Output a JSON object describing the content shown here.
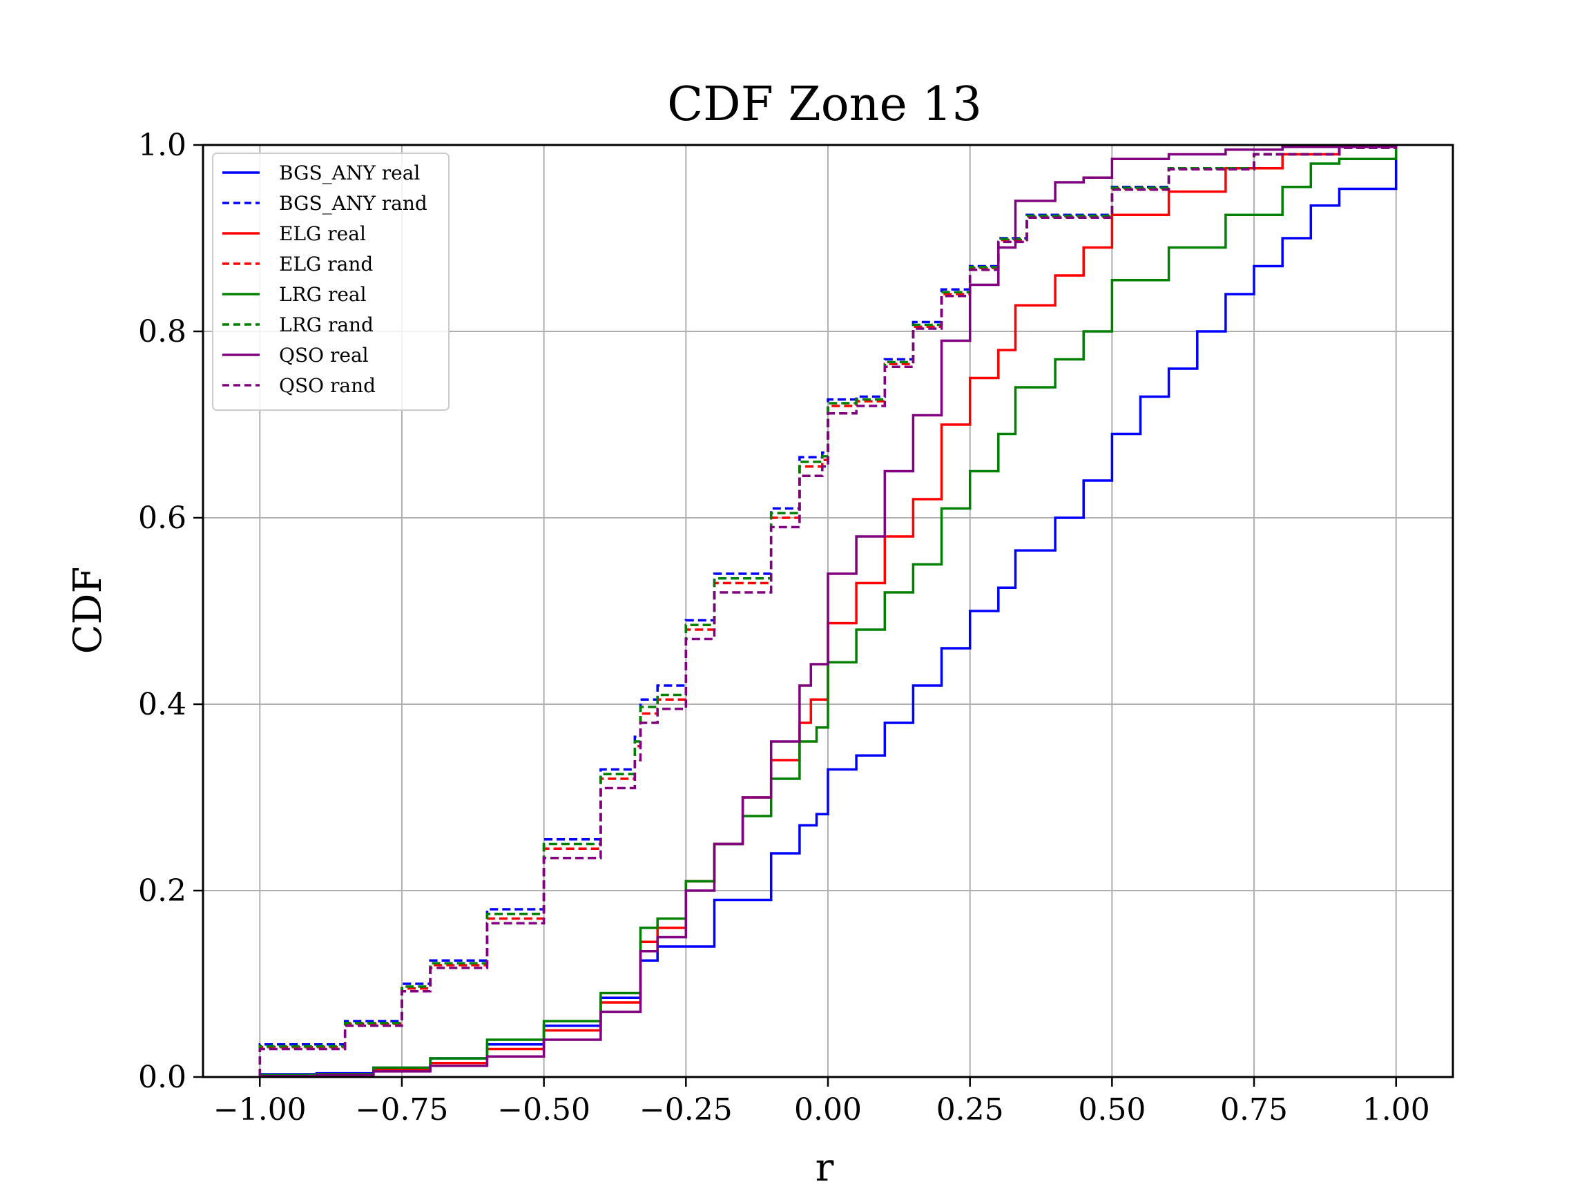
{
  "chart_data": {
    "type": "line",
    "title": "CDF Zone 13",
    "xlabel": "r",
    "ylabel": "CDF",
    "xlim": [
      -1.1,
      1.1
    ],
    "ylim": [
      0.0,
      1.0
    ],
    "grid": true,
    "legend_position": "upper-left",
    "x_ticks": [
      -1.0,
      -0.75,
      -0.5,
      -0.25,
      0.0,
      0.25,
      0.5,
      0.75,
      1.0
    ],
    "x_tick_labels": [
      "−1.00",
      "−0.75",
      "−0.50",
      "−0.25",
      "0.00",
      "0.25",
      "0.50",
      "0.75",
      "1.00"
    ],
    "y_ticks": [
      0.0,
      0.2,
      0.4,
      0.6,
      0.8,
      1.0
    ],
    "y_tick_labels": [
      "0.0",
      "0.2",
      "0.4",
      "0.6",
      "0.8",
      "1.0"
    ],
    "series": [
      {
        "name": "BGS_ANY real",
        "color": "#0000ff",
        "dashed": false,
        "points": [
          [
            -1.0,
            0.0
          ],
          [
            -1.0,
            0.003
          ],
          [
            -0.9,
            0.004
          ],
          [
            -0.8,
            0.01
          ],
          [
            -0.7,
            0.02
          ],
          [
            -0.6,
            0.035
          ],
          [
            -0.5,
            0.055
          ],
          [
            -0.4,
            0.085
          ],
          [
            -0.33,
            0.125
          ],
          [
            -0.3,
            0.14
          ],
          [
            -0.2,
            0.19
          ],
          [
            -0.1,
            0.24
          ],
          [
            -0.05,
            0.27
          ],
          [
            -0.02,
            0.282
          ],
          [
            0.0,
            0.282
          ],
          [
            0.0,
            0.33
          ],
          [
            0.05,
            0.345
          ],
          [
            0.1,
            0.38
          ],
          [
            0.15,
            0.42
          ],
          [
            0.2,
            0.46
          ],
          [
            0.25,
            0.5
          ],
          [
            0.3,
            0.525
          ],
          [
            0.33,
            0.525
          ],
          [
            0.33,
            0.565
          ],
          [
            0.4,
            0.6
          ],
          [
            0.45,
            0.64
          ],
          [
            0.5,
            0.67
          ],
          [
            0.5,
            0.69
          ],
          [
            0.55,
            0.73
          ],
          [
            0.6,
            0.76
          ],
          [
            0.65,
            0.8
          ],
          [
            0.7,
            0.84
          ],
          [
            0.75,
            0.87
          ],
          [
            0.8,
            0.9
          ],
          [
            0.85,
            0.935
          ],
          [
            0.9,
            0.953
          ],
          [
            1.0,
            0.953
          ],
          [
            1.0,
            1.0
          ]
        ]
      },
      {
        "name": "BGS_ANY rand",
        "color": "#0000ff",
        "dashed": true,
        "points": [
          [
            -1.0,
            0.0
          ],
          [
            -1.0,
            0.035
          ],
          [
            -0.92,
            0.035
          ],
          [
            -0.85,
            0.06
          ],
          [
            -0.75,
            0.1
          ],
          [
            -0.7,
            0.125
          ],
          [
            -0.6,
            0.18
          ],
          [
            -0.5,
            0.255
          ],
          [
            -0.4,
            0.33
          ],
          [
            -0.34,
            0.365
          ],
          [
            -0.33,
            0.405
          ],
          [
            -0.3,
            0.42
          ],
          [
            -0.25,
            0.49
          ],
          [
            -0.2,
            0.54
          ],
          [
            -0.1,
            0.61
          ],
          [
            -0.05,
            0.665
          ],
          [
            -0.01,
            0.67
          ],
          [
            0.0,
            0.67
          ],
          [
            0.0,
            0.727
          ],
          [
            0.05,
            0.73
          ],
          [
            0.1,
            0.77
          ],
          [
            0.15,
            0.81
          ],
          [
            0.2,
            0.845
          ],
          [
            0.25,
            0.87
          ],
          [
            0.3,
            0.9
          ],
          [
            0.35,
            0.925
          ],
          [
            0.5,
            0.955
          ],
          [
            0.6,
            0.975
          ],
          [
            0.75,
            0.99
          ],
          [
            0.9,
            0.997
          ],
          [
            1.0,
            1.0
          ]
        ]
      },
      {
        "name": "ELG real",
        "color": "#ff0000",
        "dashed": false,
        "points": [
          [
            -1.0,
            0.0
          ],
          [
            -1.0,
            0.002
          ],
          [
            -0.9,
            0.003
          ],
          [
            -0.8,
            0.008
          ],
          [
            -0.7,
            0.015
          ],
          [
            -0.6,
            0.03
          ],
          [
            -0.5,
            0.05
          ],
          [
            -0.4,
            0.08
          ],
          [
            -0.33,
            0.1
          ],
          [
            -0.33,
            0.145
          ],
          [
            -0.3,
            0.16
          ],
          [
            -0.25,
            0.21
          ],
          [
            -0.2,
            0.25
          ],
          [
            -0.15,
            0.3
          ],
          [
            -0.1,
            0.34
          ],
          [
            -0.05,
            0.38
          ],
          [
            -0.03,
            0.405
          ],
          [
            0.0,
            0.405
          ],
          [
            0.0,
            0.487
          ],
          [
            0.05,
            0.53
          ],
          [
            0.1,
            0.58
          ],
          [
            0.15,
            0.62
          ],
          [
            0.2,
            0.7
          ],
          [
            0.25,
            0.75
          ],
          [
            0.3,
            0.78
          ],
          [
            0.33,
            0.79
          ],
          [
            0.33,
            0.828
          ],
          [
            0.4,
            0.86
          ],
          [
            0.45,
            0.89
          ],
          [
            0.5,
            0.91
          ],
          [
            0.5,
            0.925
          ],
          [
            0.6,
            0.95
          ],
          [
            0.7,
            0.975
          ],
          [
            0.8,
            0.99
          ],
          [
            0.9,
            0.998
          ],
          [
            1.0,
            1.0
          ]
        ]
      },
      {
        "name": "ELG rand",
        "color": "#ff0000",
        "dashed": true,
        "points": [
          [
            -1.0,
            0.0
          ],
          [
            -1.0,
            0.032
          ],
          [
            -0.92,
            0.032
          ],
          [
            -0.85,
            0.057
          ],
          [
            -0.75,
            0.095
          ],
          [
            -0.7,
            0.12
          ],
          [
            -0.6,
            0.17
          ],
          [
            -0.5,
            0.245
          ],
          [
            -0.4,
            0.32
          ],
          [
            -0.34,
            0.355
          ],
          [
            -0.33,
            0.39
          ],
          [
            -0.3,
            0.405
          ],
          [
            -0.25,
            0.48
          ],
          [
            -0.2,
            0.53
          ],
          [
            -0.1,
            0.6
          ],
          [
            -0.05,
            0.655
          ],
          [
            -0.01,
            0.662
          ],
          [
            0.0,
            0.662
          ],
          [
            0.0,
            0.72
          ],
          [
            0.05,
            0.725
          ],
          [
            0.1,
            0.765
          ],
          [
            0.15,
            0.805
          ],
          [
            0.2,
            0.84
          ],
          [
            0.25,
            0.868
          ],
          [
            0.3,
            0.898
          ],
          [
            0.35,
            0.923
          ],
          [
            0.5,
            0.953
          ],
          [
            0.6,
            0.974
          ],
          [
            0.75,
            0.99
          ],
          [
            0.9,
            0.997
          ],
          [
            1.0,
            1.0
          ]
        ]
      },
      {
        "name": "LRG real",
        "color": "#008000",
        "dashed": false,
        "points": [
          [
            -1.0,
            0.0
          ],
          [
            -1.0,
            0.002
          ],
          [
            -0.9,
            0.003
          ],
          [
            -0.8,
            0.01
          ],
          [
            -0.7,
            0.02
          ],
          [
            -0.6,
            0.04
          ],
          [
            -0.5,
            0.06
          ],
          [
            -0.4,
            0.09
          ],
          [
            -0.33,
            0.13
          ],
          [
            -0.33,
            0.16
          ],
          [
            -0.3,
            0.17
          ],
          [
            -0.25,
            0.21
          ],
          [
            -0.2,
            0.25
          ],
          [
            -0.15,
            0.28
          ],
          [
            -0.1,
            0.32
          ],
          [
            -0.05,
            0.36
          ],
          [
            -0.02,
            0.375
          ],
          [
            0.0,
            0.375
          ],
          [
            0.0,
            0.445
          ],
          [
            0.05,
            0.48
          ],
          [
            0.1,
            0.52
          ],
          [
            0.15,
            0.55
          ],
          [
            0.2,
            0.61
          ],
          [
            0.25,
            0.65
          ],
          [
            0.3,
            0.69
          ],
          [
            0.33,
            0.705
          ],
          [
            0.33,
            0.74
          ],
          [
            0.4,
            0.77
          ],
          [
            0.45,
            0.8
          ],
          [
            0.5,
            0.83
          ],
          [
            0.5,
            0.855
          ],
          [
            0.6,
            0.89
          ],
          [
            0.7,
            0.925
          ],
          [
            0.8,
            0.955
          ],
          [
            0.85,
            0.98
          ],
          [
            0.9,
            0.985
          ],
          [
            1.0,
            0.985
          ],
          [
            1.0,
            1.0
          ]
        ]
      },
      {
        "name": "LRG rand",
        "color": "#008000",
        "dashed": true,
        "points": [
          [
            -1.0,
            0.0
          ],
          [
            -1.0,
            0.033
          ],
          [
            -0.92,
            0.033
          ],
          [
            -0.85,
            0.058
          ],
          [
            -0.75,
            0.097
          ],
          [
            -0.7,
            0.122
          ],
          [
            -0.6,
            0.175
          ],
          [
            -0.5,
            0.25
          ],
          [
            -0.4,
            0.325
          ],
          [
            -0.34,
            0.36
          ],
          [
            -0.33,
            0.397
          ],
          [
            -0.3,
            0.41
          ],
          [
            -0.25,
            0.485
          ],
          [
            -0.2,
            0.535
          ],
          [
            -0.1,
            0.605
          ],
          [
            -0.05,
            0.66
          ],
          [
            -0.01,
            0.666
          ],
          [
            0.0,
            0.666
          ],
          [
            0.0,
            0.723
          ],
          [
            0.05,
            0.727
          ],
          [
            0.1,
            0.767
          ],
          [
            0.15,
            0.807
          ],
          [
            0.2,
            0.842
          ],
          [
            0.25,
            0.869
          ],
          [
            0.3,
            0.899
          ],
          [
            0.35,
            0.924
          ],
          [
            0.5,
            0.954
          ],
          [
            0.6,
            0.975
          ],
          [
            0.75,
            0.99
          ],
          [
            0.9,
            0.997
          ],
          [
            1.0,
            1.0
          ]
        ]
      },
      {
        "name": "QSO real",
        "color": "#800080",
        "dashed": false,
        "points": [
          [
            -1.0,
            0.0
          ],
          [
            -1.0,
            0.001
          ],
          [
            -0.9,
            0.002
          ],
          [
            -0.8,
            0.006
          ],
          [
            -0.7,
            0.012
          ],
          [
            -0.6,
            0.022
          ],
          [
            -0.5,
            0.04
          ],
          [
            -0.4,
            0.07
          ],
          [
            -0.33,
            0.09
          ],
          [
            -0.33,
            0.135
          ],
          [
            -0.3,
            0.15
          ],
          [
            -0.25,
            0.2
          ],
          [
            -0.2,
            0.25
          ],
          [
            -0.15,
            0.3
          ],
          [
            -0.1,
            0.36
          ],
          [
            -0.05,
            0.42
          ],
          [
            -0.03,
            0.443
          ],
          [
            0.0,
            0.443
          ],
          [
            0.0,
            0.54
          ],
          [
            0.05,
            0.58
          ],
          [
            0.1,
            0.65
          ],
          [
            0.15,
            0.71
          ],
          [
            0.2,
            0.79
          ],
          [
            0.25,
            0.85
          ],
          [
            0.3,
            0.89
          ],
          [
            0.33,
            0.895
          ],
          [
            0.33,
            0.94
          ],
          [
            0.4,
            0.96
          ],
          [
            0.45,
            0.965
          ],
          [
            0.5,
            0.97
          ],
          [
            0.5,
            0.985
          ],
          [
            0.6,
            0.99
          ],
          [
            0.7,
            0.995
          ],
          [
            0.8,
            0.998
          ],
          [
            1.0,
            1.0
          ]
        ]
      },
      {
        "name": "QSO rand",
        "color": "#800080",
        "dashed": true,
        "points": [
          [
            -1.0,
            0.0
          ],
          [
            -1.0,
            0.03
          ],
          [
            -0.92,
            0.03
          ],
          [
            -0.85,
            0.055
          ],
          [
            -0.75,
            0.092
          ],
          [
            -0.7,
            0.117
          ],
          [
            -0.6,
            0.165
          ],
          [
            -0.5,
            0.235
          ],
          [
            -0.4,
            0.31
          ],
          [
            -0.34,
            0.34
          ],
          [
            -0.33,
            0.38
          ],
          [
            -0.3,
            0.395
          ],
          [
            -0.25,
            0.47
          ],
          [
            -0.2,
            0.52
          ],
          [
            -0.1,
            0.59
          ],
          [
            -0.05,
            0.645
          ],
          [
            -0.01,
            0.655
          ],
          [
            0.0,
            0.655
          ],
          [
            0.0,
            0.712
          ],
          [
            0.05,
            0.72
          ],
          [
            0.1,
            0.762
          ],
          [
            0.15,
            0.803
          ],
          [
            0.2,
            0.838
          ],
          [
            0.25,
            0.866
          ],
          [
            0.3,
            0.896
          ],
          [
            0.35,
            0.922
          ],
          [
            0.5,
            0.952
          ],
          [
            0.6,
            0.974
          ],
          [
            0.75,
            0.99
          ],
          [
            0.9,
            0.997
          ],
          [
            1.0,
            1.0
          ]
        ]
      }
    ]
  }
}
